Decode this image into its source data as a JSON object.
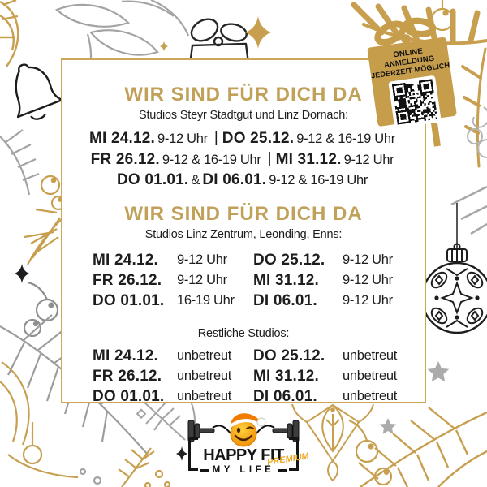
{
  "badge": {
    "line1": "ONLINE ANMELDUNG",
    "line2": "JEDERZEIT MÖGLICH",
    "icon": "qr-code",
    "box_color": "#c69d4b"
  },
  "section1": {
    "title": "WIR SIND FÜR DICH DA",
    "subtitle": "Studios Steyr Stadtgut und Linz Dornach:",
    "lines": [
      {
        "segments": [
          {
            "k": "day",
            "t": "MI 24.12."
          },
          {
            "k": "time",
            "t": "9-12 Uhr"
          },
          {
            "k": "sep",
            "t": "|"
          },
          {
            "k": "day",
            "t": "DO 25.12."
          },
          {
            "k": "time",
            "t": "9-12 & 16-19 Uhr"
          }
        ]
      },
      {
        "segments": [
          {
            "k": "day",
            "t": "FR 26.12."
          },
          {
            "k": "time",
            "t": "9-12 & 16-19 Uhr"
          },
          {
            "k": "sep",
            "t": "|"
          },
          {
            "k": "day",
            "t": "MI 31.12."
          },
          {
            "k": "time",
            "t": "9-12 Uhr"
          }
        ]
      },
      {
        "segments": [
          {
            "k": "day",
            "t": "DO 01.01."
          },
          {
            "k": "amp",
            "t": "&"
          },
          {
            "k": "day",
            "t": "DI 06.01."
          },
          {
            "k": "time",
            "t": "9-12 & 16-19 Uhr"
          }
        ]
      }
    ]
  },
  "section2": {
    "title": "WIR SIND FÜR DICH DA",
    "subtitle": "Studios Linz Zentrum, Leonding, Enns:",
    "rows": [
      [
        "MI 24.12.",
        "9-12 Uhr",
        "DO 25.12.",
        "9-12 Uhr"
      ],
      [
        "FR 26.12.",
        "9-12 Uhr",
        "MI 31.12.",
        "9-12 Uhr"
      ],
      [
        "DO 01.01.",
        "16-19 Uhr",
        "DI 06.01.",
        "9-12 Uhr"
      ]
    ]
  },
  "section3": {
    "subtitle": "Restliche Studios:",
    "rows": [
      [
        "MI 24.12.",
        "unbetreut",
        "DO 25.12.",
        "unbetreut"
      ],
      [
        "FR 26.12.",
        "unbetreut",
        "MI 31.12.",
        "unbetreut"
      ],
      [
        "DO 01.01.",
        "unbetreut",
        "DI 06.01.",
        "unbetreut"
      ]
    ]
  },
  "logo": {
    "brand": "HAPPY FIT",
    "premium": "PREMIUM",
    "sub": "MY LIFE"
  },
  "colors": {
    "gold": "#c49e52",
    "ink": "#1d1d1d",
    "gray": "#a3a3a3",
    "card_border": "#cda757",
    "smiley_orange": "#f5a11c"
  },
  "decorations": [
    "bell-icon",
    "gift-icon",
    "sparkle-icon",
    "star-icon",
    "pine-branch",
    "berries-icon",
    "christmas-ball-icon",
    "snowflake-twig",
    "gold-ornament",
    "qr-code"
  ]
}
